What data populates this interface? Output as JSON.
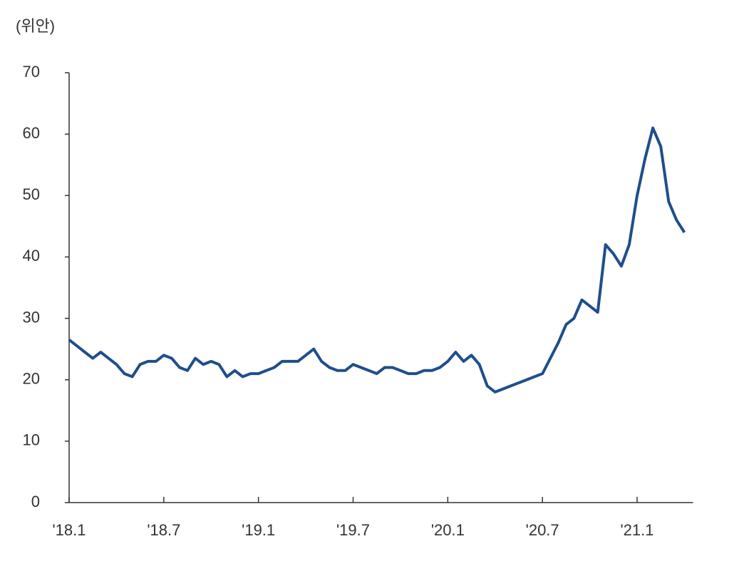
{
  "chart_data": {
    "type": "line",
    "y_label": "(위안)",
    "categories": [
      "'18.1",
      null,
      null,
      null,
      null,
      null,
      null,
      null,
      null,
      null,
      null,
      null,
      "'18.7",
      null,
      null,
      null,
      null,
      null,
      null,
      null,
      null,
      null,
      null,
      null,
      "'19.1",
      null,
      null,
      null,
      null,
      null,
      null,
      null,
      null,
      null,
      null,
      null,
      "'19.7",
      null,
      null,
      null,
      null,
      null,
      null,
      null,
      null,
      null,
      null,
      null,
      "'20.1",
      null,
      null,
      null,
      null,
      null,
      null,
      null,
      null,
      null,
      null,
      null,
      "'20.7",
      null,
      null,
      null,
      null,
      null,
      null,
      null,
      null,
      null,
      null,
      null,
      "'21.1",
      null,
      null,
      null,
      null,
      null,
      null
    ],
    "values": [
      26.5,
      25.5,
      24.5,
      23.5,
      24.5,
      23.5,
      22.5,
      21,
      20.5,
      22.5,
      23,
      23,
      24,
      23.5,
      22,
      21.5,
      23.5,
      22.5,
      23,
      22.5,
      20.5,
      21.5,
      20.5,
      21,
      21,
      21.5,
      22,
      23,
      23,
      23,
      24,
      25,
      23,
      22,
      21.5,
      21.5,
      22.5,
      22,
      21.5,
      21,
      22,
      22,
      21.5,
      21,
      21,
      21.5,
      21.5,
      22,
      23,
      24.5,
      23,
      24,
      22.5,
      19,
      18,
      18.5,
      19,
      19.5,
      20,
      20.5,
      21,
      23.5,
      26,
      29,
      30,
      33,
      32,
      31,
      42,
      40.5,
      38.5,
      42,
      50,
      56,
      61,
      58,
      49,
      46,
      44
    ],
    "color": "#1f4e8c",
    "ylim": [
      0,
      70
    ],
    "yticks": [
      0,
      10,
      20,
      30,
      40,
      50,
      60,
      70
    ],
    "grid": false
  }
}
